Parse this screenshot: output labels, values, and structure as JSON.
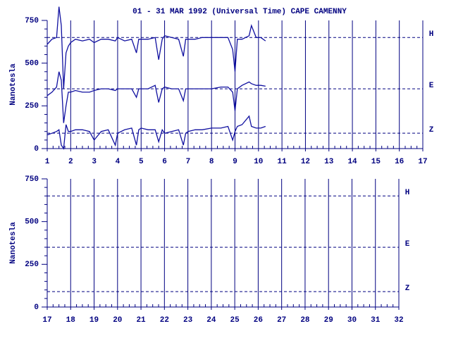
{
  "chart_data": [
    {
      "type": "line",
      "title": "01 - 31 MAR 1992 (Universal Time) CAPE CAMENNY",
      "y_label": "Nanotesla",
      "xlim": [
        1,
        17
      ],
      "xticks": [
        1,
        2,
        3,
        4,
        5,
        6,
        7,
        8,
        9,
        10,
        11,
        12,
        13,
        14,
        15,
        16,
        17
      ],
      "ylim": [
        0,
        750
      ],
      "yticks": [
        0,
        250,
        500,
        750
      ],
      "reference_lines": [
        {
          "value": 650,
          "label": "H"
        },
        {
          "value": 350,
          "label": "E"
        },
        {
          "value": 90,
          "label": "Z"
        }
      ],
      "x": [
        1.0,
        1.2,
        1.4,
        1.5,
        1.6,
        1.7,
        1.8,
        1.9,
        2.0,
        2.2,
        2.5,
        2.8,
        3.0,
        3.3,
        3.6,
        3.9,
        4.0,
        4.3,
        4.6,
        4.8,
        4.9,
        5.0,
        5.3,
        5.6,
        5.75,
        5.9,
        6.0,
        6.3,
        6.6,
        6.8,
        6.9,
        7.0,
        7.3,
        7.6,
        8.0,
        8.4,
        8.7,
        8.9,
        9.0,
        9.1,
        9.3,
        9.6,
        9.7,
        9.9,
        10.1,
        10.3
      ],
      "series": [
        {
          "color": "#1010a0",
          "values": [
            610,
            640,
            650,
            830,
            720,
            350,
            560,
            600,
            620,
            640,
            630,
            640,
            620,
            640,
            640,
            630,
            650,
            630,
            640,
            560,
            640,
            640,
            640,
            650,
            520,
            640,
            660,
            650,
            640,
            540,
            640,
            640,
            640,
            650,
            650,
            650,
            650,
            580,
            450,
            640,
            640,
            660,
            720,
            650,
            650,
            630
          ]
        },
        {
          "color": "#1010a0",
          "values": [
            310,
            330,
            360,
            450,
            400,
            150,
            250,
            330,
            330,
            340,
            330,
            330,
            340,
            350,
            350,
            340,
            350,
            350,
            350,
            300,
            350,
            350,
            350,
            370,
            270,
            350,
            360,
            350,
            350,
            280,
            350,
            350,
            350,
            350,
            350,
            360,
            360,
            330,
            220,
            350,
            370,
            390,
            380,
            370,
            370,
            365
          ]
        },
        {
          "color": "#1010a0",
          "values": [
            80,
            90,
            100,
            110,
            20,
            0,
            140,
            100,
            100,
            110,
            110,
            100,
            50,
            100,
            110,
            20,
            90,
            110,
            120,
            20,
            110,
            120,
            110,
            110,
            40,
            110,
            90,
            100,
            110,
            20,
            90,
            100,
            110,
            110,
            120,
            120,
            130,
            50,
            100,
            130,
            140,
            190,
            130,
            120,
            120,
            130
          ]
        }
      ]
    },
    {
      "type": "line",
      "y_label": "Nanotesla",
      "xlim": [
        17,
        32
      ],
      "xticks": [
        17,
        18,
        19,
        20,
        21,
        22,
        23,
        24,
        25,
        26,
        27,
        28,
        29,
        30,
        31,
        32
      ],
      "ylim": [
        0,
        750
      ],
      "yticks": [
        0,
        250,
        500,
        750
      ],
      "reference_lines": [
        {
          "value": 650,
          "label": "H"
        },
        {
          "value": 350,
          "label": "E"
        },
        {
          "value": 90,
          "label": "Z"
        }
      ],
      "x": [],
      "series": []
    }
  ]
}
